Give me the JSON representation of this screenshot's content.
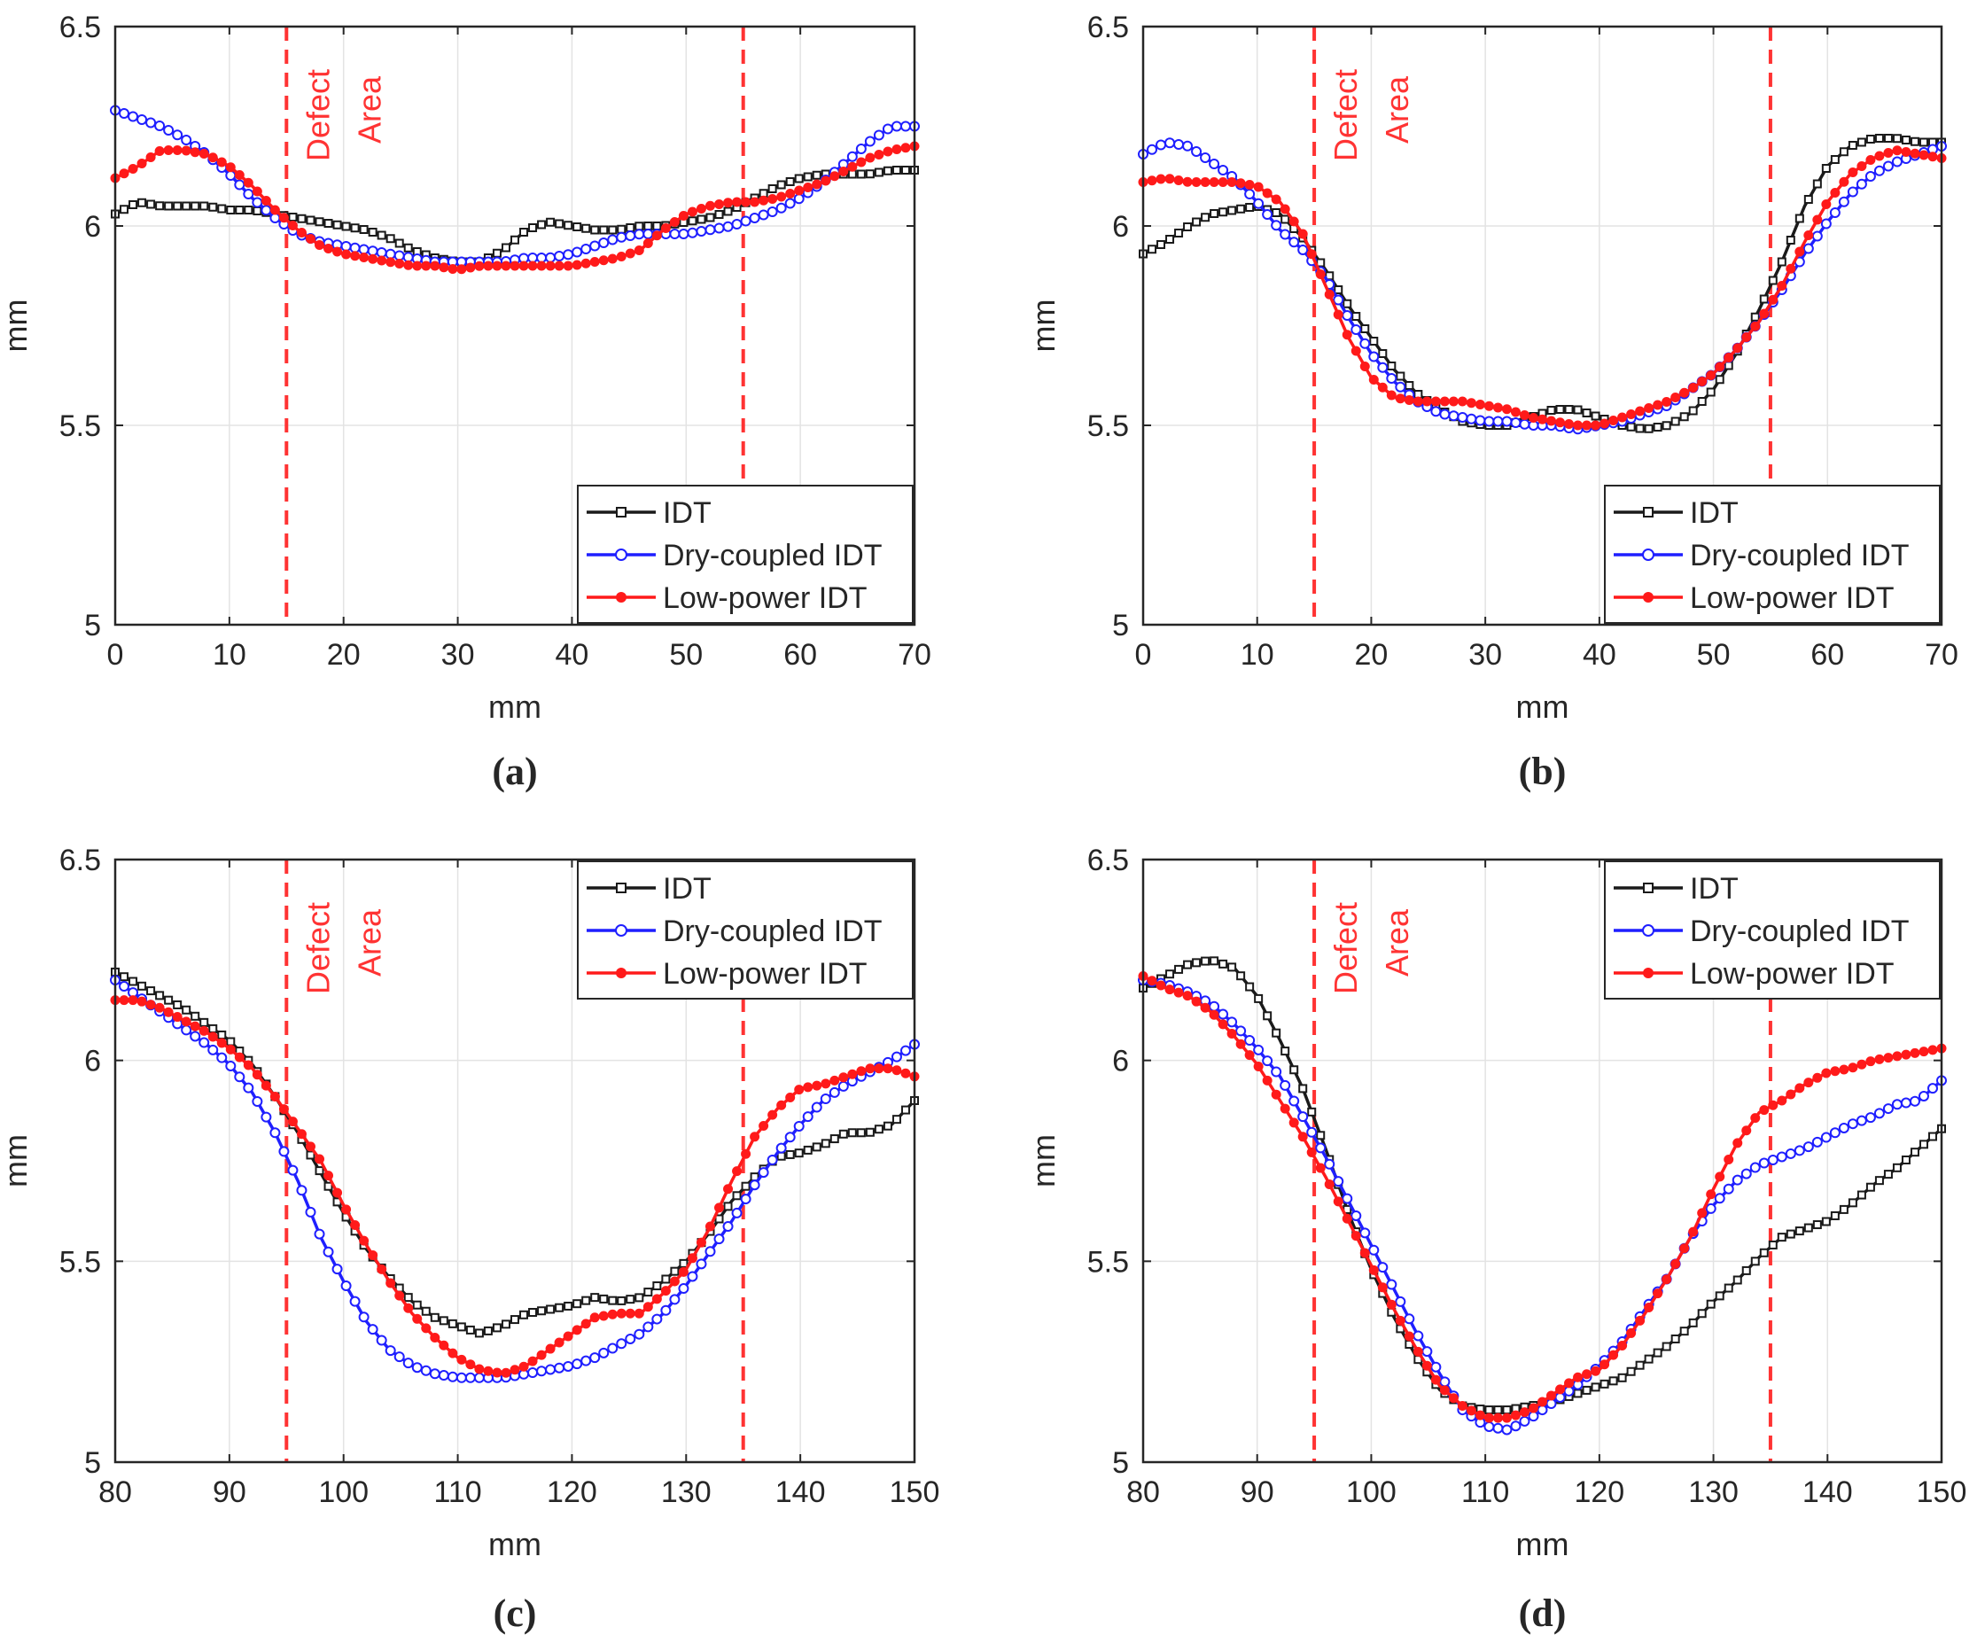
{
  "figure": {
    "panels": [
      {
        "caption": "(a)"
      },
      {
        "caption": "(b)"
      },
      {
        "caption": "(c)"
      },
      {
        "caption": "(d)"
      }
    ]
  },
  "colors": {
    "IDT": "#1a1a1a",
    "Dry-coupled IDT": "#1f1fff",
    "Low-power IDT": "#ff1a1a",
    "defect_line": "#ff3333",
    "grid": "#e3e3e3"
  },
  "chart_data": [
    {
      "type": "line",
      "caption": "(a)",
      "xlabel": "mm",
      "ylabel": "mm",
      "xlim": [
        0,
        70
      ],
      "ylim": [
        5,
        6.5
      ],
      "xticks": [
        0,
        10,
        20,
        30,
        40,
        50,
        60,
        70
      ],
      "yticks": [
        5,
        5.5,
        6,
        6.5
      ],
      "ytick_labels": [
        "5",
        "5.5",
        "6",
        "6.5"
      ],
      "grid": true,
      "legend_position": "bottom-right",
      "defect_lines": [
        15,
        55
      ],
      "annotation": [
        "Defect",
        "Area"
      ],
      "series": [
        {
          "name": "IDT",
          "marker": "square",
          "x": [
            0,
            2,
            4,
            6,
            8,
            10,
            12,
            14,
            16,
            18,
            20,
            22,
            24,
            26,
            28,
            30,
            32,
            34,
            36,
            38,
            40,
            42,
            44,
            46,
            48,
            50,
            52,
            54,
            56,
            58,
            60,
            62,
            64,
            66,
            68,
            70
          ],
          "y": [
            6.03,
            6.06,
            6.05,
            6.05,
            6.05,
            6.04,
            6.04,
            6.03,
            6.02,
            6.01,
            6.0,
            5.99,
            5.97,
            5.94,
            5.92,
            5.91,
            5.91,
            5.94,
            5.99,
            6.01,
            6.0,
            5.99,
            5.99,
            6.0,
            6.0,
            6.01,
            6.02,
            6.04,
            6.07,
            6.1,
            6.12,
            6.13,
            6.13,
            6.13,
            6.14,
            6.14
          ]
        },
        {
          "name": "Dry-coupled IDT",
          "marker": "circle",
          "x": [
            0,
            2,
            4,
            6,
            8,
            10,
            12,
            14,
            16,
            18,
            20,
            22,
            24,
            26,
            28,
            30,
            32,
            34,
            36,
            38,
            40,
            42,
            44,
            46,
            48,
            50,
            52,
            54,
            56,
            58,
            60,
            62,
            64,
            66,
            68,
            70
          ],
          "y": [
            6.29,
            6.27,
            6.25,
            6.22,
            6.18,
            6.13,
            6.07,
            6.02,
            5.98,
            5.96,
            5.95,
            5.94,
            5.93,
            5.92,
            5.91,
            5.91,
            5.91,
            5.91,
            5.92,
            5.92,
            5.93,
            5.95,
            5.97,
            5.98,
            5.98,
            5.98,
            5.99,
            6.0,
            6.02,
            6.04,
            6.07,
            6.11,
            6.16,
            6.21,
            6.25,
            6.25
          ]
        },
        {
          "name": "Low-power IDT",
          "marker": "dot",
          "x": [
            0,
            2,
            4,
            6,
            8,
            10,
            12,
            14,
            16,
            18,
            20,
            22,
            24,
            26,
            28,
            30,
            32,
            34,
            36,
            38,
            40,
            42,
            44,
            46,
            48,
            50,
            52,
            54,
            56,
            58,
            60,
            62,
            64,
            66,
            68,
            70
          ],
          "y": [
            6.12,
            6.15,
            6.19,
            6.19,
            6.18,
            6.15,
            6.1,
            6.04,
            5.99,
            5.95,
            5.93,
            5.92,
            5.91,
            5.9,
            5.9,
            5.89,
            5.9,
            5.9,
            5.9,
            5.9,
            5.9,
            5.91,
            5.92,
            5.94,
            5.99,
            6.03,
            6.05,
            6.06,
            6.06,
            6.07,
            6.09,
            6.11,
            6.14,
            6.17,
            6.19,
            6.2
          ]
        }
      ]
    },
    {
      "type": "line",
      "caption": "(b)",
      "xlabel": "mm",
      "ylabel": "mm",
      "xlim": [
        0,
        70
      ],
      "ylim": [
        5,
        6.5
      ],
      "xticks": [
        0,
        10,
        20,
        30,
        40,
        50,
        60,
        70
      ],
      "yticks": [
        5,
        5.5,
        6,
        6.5
      ],
      "ytick_labels": [
        "5",
        "5.5",
        "6",
        "6.5"
      ],
      "grid": true,
      "legend_position": "bottom-right",
      "defect_lines": [
        15,
        55
      ],
      "annotation": [
        "Defect",
        "Area"
      ],
      "series": [
        {
          "name": "IDT",
          "marker": "square",
          "x": [
            0,
            2,
            4,
            6,
            8,
            10,
            12,
            14,
            16,
            18,
            20,
            22,
            24,
            26,
            28,
            30,
            32,
            34,
            36,
            38,
            40,
            42,
            44,
            46,
            48,
            50,
            52,
            54,
            56,
            58,
            60,
            62,
            64,
            66,
            68,
            70
          ],
          "y": [
            5.93,
            5.96,
            6.0,
            6.03,
            6.04,
            6.05,
            6.03,
            5.97,
            5.89,
            5.8,
            5.72,
            5.64,
            5.58,
            5.54,
            5.51,
            5.5,
            5.5,
            5.52,
            5.54,
            5.54,
            5.52,
            5.5,
            5.49,
            5.5,
            5.53,
            5.59,
            5.68,
            5.79,
            5.91,
            6.05,
            6.15,
            6.2,
            6.22,
            6.22,
            6.21,
            6.21
          ]
        },
        {
          "name": "Dry-coupled IDT",
          "marker": "circle",
          "x": [
            0,
            2,
            4,
            6,
            8,
            10,
            12,
            14,
            16,
            18,
            20,
            22,
            24,
            26,
            28,
            30,
            32,
            34,
            36,
            38,
            40,
            42,
            44,
            46,
            48,
            50,
            52,
            54,
            56,
            58,
            60,
            62,
            64,
            66,
            68,
            70
          ],
          "y": [
            6.18,
            6.21,
            6.2,
            6.16,
            6.12,
            6.06,
            5.99,
            5.94,
            5.87,
            5.77,
            5.68,
            5.61,
            5.56,
            5.53,
            5.52,
            5.51,
            5.51,
            5.5,
            5.5,
            5.49,
            5.5,
            5.51,
            5.53,
            5.55,
            5.59,
            5.63,
            5.69,
            5.76,
            5.84,
            5.93,
            6.01,
            6.08,
            6.13,
            6.16,
            6.18,
            6.2
          ]
        },
        {
          "name": "Low-power IDT",
          "marker": "dot",
          "x": [
            0,
            2,
            4,
            6,
            8,
            10,
            12,
            14,
            16,
            18,
            20,
            22,
            24,
            26,
            28,
            30,
            32,
            34,
            36,
            38,
            40,
            42,
            44,
            46,
            48,
            50,
            52,
            54,
            56,
            58,
            60,
            62,
            64,
            66,
            68,
            70
          ],
          "y": [
            6.11,
            6.12,
            6.11,
            6.11,
            6.11,
            6.1,
            6.06,
            5.98,
            5.85,
            5.72,
            5.62,
            5.57,
            5.56,
            5.56,
            5.56,
            5.55,
            5.54,
            5.52,
            5.51,
            5.5,
            5.5,
            5.52,
            5.54,
            5.56,
            5.59,
            5.63,
            5.69,
            5.76,
            5.85,
            5.96,
            6.06,
            6.13,
            6.17,
            6.19,
            6.18,
            6.17
          ]
        }
      ]
    },
    {
      "type": "line",
      "caption": "(c)",
      "xlabel": "mm",
      "ylabel": "mm",
      "xlim": [
        80,
        150
      ],
      "ylim": [
        5,
        6.5
      ],
      "xticks": [
        80,
        90,
        100,
        110,
        120,
        130,
        140,
        150
      ],
      "yticks": [
        5,
        5.5,
        6,
        6.5
      ],
      "ytick_labels": [
        "5",
        "5.5",
        "6",
        "6.5"
      ],
      "grid": true,
      "legend_position": "top-right",
      "defect_lines": [
        95,
        135
      ],
      "annotation": [
        "Defect",
        "Area"
      ],
      "series": [
        {
          "name": "IDT",
          "marker": "square",
          "x": [
            80,
            82,
            84,
            86,
            88,
            90,
            92,
            94,
            96,
            98,
            100,
            102,
            104,
            106,
            108,
            110,
            112,
            114,
            116,
            118,
            120,
            122,
            124,
            126,
            128,
            130,
            132,
            134,
            136,
            138,
            140,
            142,
            144,
            146,
            148,
            150
          ],
          "y": [
            6.22,
            6.19,
            6.16,
            6.13,
            6.09,
            6.05,
            5.99,
            5.91,
            5.82,
            5.72,
            5.62,
            5.53,
            5.46,
            5.4,
            5.36,
            5.34,
            5.32,
            5.34,
            5.37,
            5.38,
            5.39,
            5.41,
            5.4,
            5.41,
            5.45,
            5.5,
            5.57,
            5.65,
            5.71,
            5.76,
            5.77,
            5.79,
            5.82,
            5.82,
            5.84,
            5.9
          ]
        },
        {
          "name": "Dry-coupled IDT",
          "marker": "circle",
          "x": [
            80,
            82,
            84,
            86,
            88,
            90,
            92,
            94,
            96,
            98,
            100,
            102,
            104,
            106,
            108,
            110,
            112,
            114,
            116,
            118,
            120,
            122,
            124,
            126,
            128,
            130,
            132,
            134,
            136,
            138,
            140,
            142,
            144,
            146,
            148,
            150
          ],
          "y": [
            6.2,
            6.16,
            6.12,
            6.08,
            6.04,
            5.99,
            5.92,
            5.82,
            5.7,
            5.56,
            5.45,
            5.35,
            5.28,
            5.24,
            5.22,
            5.21,
            5.21,
            5.21,
            5.22,
            5.23,
            5.24,
            5.26,
            5.29,
            5.32,
            5.37,
            5.44,
            5.52,
            5.6,
            5.69,
            5.77,
            5.84,
            5.9,
            5.94,
            5.97,
            6.0,
            6.04
          ]
        },
        {
          "name": "Low-power IDT",
          "marker": "dot",
          "x": [
            80,
            82,
            84,
            86,
            88,
            90,
            92,
            94,
            96,
            98,
            100,
            102,
            104,
            106,
            108,
            110,
            112,
            114,
            116,
            118,
            120,
            122,
            124,
            126,
            128,
            130,
            132,
            134,
            136,
            138,
            140,
            142,
            144,
            146,
            148,
            150
          ],
          "y": [
            6.15,
            6.15,
            6.13,
            6.1,
            6.07,
            6.03,
            5.98,
            5.91,
            5.83,
            5.75,
            5.64,
            5.54,
            5.45,
            5.37,
            5.31,
            5.26,
            5.23,
            5.22,
            5.24,
            5.28,
            5.32,
            5.36,
            5.37,
            5.37,
            5.42,
            5.48,
            5.58,
            5.7,
            5.81,
            5.88,
            5.93,
            5.94,
            5.96,
            5.98,
            5.98,
            5.96
          ]
        }
      ]
    },
    {
      "type": "line",
      "caption": "(d)",
      "xlabel": "mm",
      "ylabel": "mm",
      "xlim": [
        80,
        150
      ],
      "ylim": [
        5,
        6.5
      ],
      "xticks": [
        80,
        90,
        100,
        110,
        120,
        130,
        140,
        150
      ],
      "yticks": [
        5,
        5.5,
        6,
        6.5
      ],
      "ytick_labels": [
        "5",
        "5.5",
        "6",
        "6.5"
      ],
      "grid": true,
      "legend_position": "top-right",
      "defect_lines": [
        95,
        135
      ],
      "annotation": [
        "Defect",
        "Area"
      ],
      "series": [
        {
          "name": "IDT",
          "marker": "square",
          "x": [
            80,
            82,
            84,
            86,
            88,
            90,
            92,
            94,
            96,
            98,
            100,
            102,
            104,
            106,
            108,
            110,
            112,
            114,
            116,
            118,
            120,
            122,
            124,
            126,
            128,
            130,
            132,
            134,
            136,
            138,
            140,
            142,
            144,
            146,
            148,
            150
          ],
          "y": [
            6.18,
            6.21,
            6.24,
            6.25,
            6.23,
            6.16,
            6.05,
            5.93,
            5.78,
            5.62,
            5.48,
            5.36,
            5.26,
            5.18,
            5.14,
            5.13,
            5.13,
            5.14,
            5.15,
            5.17,
            5.19,
            5.21,
            5.25,
            5.29,
            5.34,
            5.4,
            5.45,
            5.51,
            5.56,
            5.58,
            5.6,
            5.64,
            5.69,
            5.73,
            5.78,
            5.83
          ]
        },
        {
          "name": "Dry-coupled IDT",
          "marker": "circle",
          "x": [
            80,
            82,
            84,
            86,
            88,
            90,
            92,
            94,
            96,
            98,
            100,
            102,
            104,
            106,
            108,
            110,
            112,
            114,
            116,
            118,
            120,
            122,
            124,
            126,
            128,
            130,
            132,
            134,
            136,
            138,
            140,
            142,
            144,
            146,
            148,
            150
          ],
          "y": [
            6.2,
            6.19,
            6.17,
            6.14,
            6.09,
            6.03,
            5.96,
            5.86,
            5.76,
            5.65,
            5.54,
            5.43,
            5.32,
            5.22,
            5.13,
            5.09,
            5.08,
            5.11,
            5.15,
            5.19,
            5.24,
            5.3,
            5.38,
            5.46,
            5.56,
            5.64,
            5.7,
            5.74,
            5.76,
            5.78,
            5.81,
            5.84,
            5.86,
            5.89,
            5.9,
            5.95
          ]
        },
        {
          "name": "Low-power IDT",
          "marker": "dot",
          "x": [
            80,
            82,
            84,
            86,
            88,
            90,
            92,
            94,
            96,
            98,
            100,
            102,
            104,
            106,
            108,
            110,
            112,
            114,
            116,
            118,
            120,
            122,
            124,
            126,
            128,
            130,
            132,
            134,
            136,
            138,
            140,
            142,
            144,
            146,
            148,
            150
          ],
          "y": [
            6.21,
            6.18,
            6.16,
            6.12,
            6.06,
            5.99,
            5.9,
            5.81,
            5.71,
            5.6,
            5.49,
            5.38,
            5.28,
            5.19,
            5.14,
            5.11,
            5.11,
            5.13,
            5.17,
            5.21,
            5.23,
            5.29,
            5.37,
            5.46,
            5.56,
            5.68,
            5.79,
            5.87,
            5.9,
            5.94,
            5.97,
            5.98,
            6.0,
            6.01,
            6.02,
            6.03
          ]
        }
      ]
    }
  ]
}
